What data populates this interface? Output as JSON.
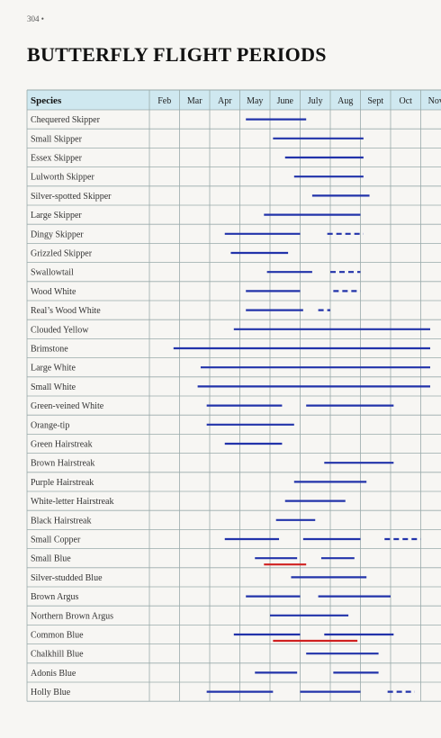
{
  "page_number": "304 •",
  "title": "BUTTERFLY FLIGHT PERIODS",
  "colors": {
    "line": "#2233aa",
    "highlight": "#d02020",
    "header_bg": "#cfe8f0",
    "grid": "#9aa"
  },
  "chart_data": {
    "type": "table",
    "species_header": "Species",
    "months": [
      "Feb",
      "Mar",
      "Apr",
      "May",
      "June",
      "July",
      "Aug",
      "Sept",
      "Oct",
      "Nov"
    ],
    "rows": [
      {
        "species": "Chequered Skipper",
        "bars": [
          {
            "start": 3.2,
            "end": 5.2,
            "style": "solid",
            "color": "blue"
          }
        ]
      },
      {
        "species": "Small Skipper",
        "bars": [
          {
            "start": 4.1,
            "end": 7.1,
            "style": "solid",
            "color": "blue"
          }
        ]
      },
      {
        "species": "Essex Skipper",
        "bars": [
          {
            "start": 4.5,
            "end": 7.1,
            "style": "solid",
            "color": "blue"
          }
        ]
      },
      {
        "species": "Lulworth Skipper",
        "bars": [
          {
            "start": 4.8,
            "end": 7.1,
            "style": "solid",
            "color": "blue"
          }
        ]
      },
      {
        "species": "Silver-spotted Skipper",
        "bars": [
          {
            "start": 5.4,
            "end": 7.3,
            "style": "solid",
            "color": "blue"
          }
        ]
      },
      {
        "species": "Large Skipper",
        "bars": [
          {
            "start": 3.8,
            "end": 7.0,
            "style": "solid",
            "color": "blue"
          }
        ]
      },
      {
        "species": "Dingy Skipper",
        "bars": [
          {
            "start": 2.5,
            "end": 5.0,
            "style": "solid",
            "color": "blue"
          },
          {
            "start": 5.9,
            "end": 7.1,
            "style": "dashed",
            "color": "blue"
          }
        ]
      },
      {
        "species": "Grizzled Skipper",
        "bars": [
          {
            "start": 2.7,
            "end": 4.6,
            "style": "solid",
            "color": "blue"
          }
        ]
      },
      {
        "species": "Swallowtail",
        "bars": [
          {
            "start": 3.9,
            "end": 5.4,
            "style": "solid",
            "color": "blue"
          },
          {
            "start": 6.0,
            "end": 7.0,
            "style": "dashed",
            "color": "blue"
          }
        ]
      },
      {
        "species": "Wood White",
        "bars": [
          {
            "start": 3.2,
            "end": 5.0,
            "style": "solid",
            "color": "blue"
          },
          {
            "start": 6.1,
            "end": 7.0,
            "style": "dashed",
            "color": "blue"
          }
        ]
      },
      {
        "species": "Real’s Wood White",
        "bars": [
          {
            "start": 3.2,
            "end": 5.1,
            "style": "solid",
            "color": "blue"
          },
          {
            "start": 5.6,
            "end": 6.0,
            "style": "dashed",
            "color": "blue"
          }
        ]
      },
      {
        "species": "Clouded Yellow",
        "bars": [
          {
            "start": 2.8,
            "end": 9.7,
            "style": "solid",
            "color": "blue"
          }
        ]
      },
      {
        "species": "Brimstone",
        "bars": [
          {
            "start": 0.8,
            "end": 9.7,
            "style": "solid",
            "color": "blue"
          }
        ]
      },
      {
        "species": "Large White",
        "bars": [
          {
            "start": 1.7,
            "end": 9.9,
            "style": "solid",
            "color": "blue"
          }
        ]
      },
      {
        "species": "Small White",
        "bars": [
          {
            "start": 1.6,
            "end": 9.9,
            "style": "solid",
            "color": "blue"
          }
        ]
      },
      {
        "species": "Green-veined White",
        "bars": [
          {
            "start": 1.9,
            "end": 4.4,
            "style": "solid",
            "color": "blue"
          },
          {
            "start": 5.2,
            "end": 8.1,
            "style": "solid",
            "color": "blue"
          }
        ]
      },
      {
        "species": "Orange-tip",
        "bars": [
          {
            "start": 1.9,
            "end": 4.8,
            "style": "solid",
            "color": "blue"
          }
        ]
      },
      {
        "species": "Green Hairstreak",
        "bars": [
          {
            "start": 2.5,
            "end": 4.4,
            "style": "solid",
            "color": "blue"
          }
        ]
      },
      {
        "species": "Brown Hairstreak",
        "bars": [
          {
            "start": 5.8,
            "end": 8.1,
            "style": "solid",
            "color": "blue"
          }
        ]
      },
      {
        "species": "Purple Hairstreak",
        "bars": [
          {
            "start": 4.8,
            "end": 7.2,
            "style": "solid",
            "color": "blue"
          }
        ]
      },
      {
        "species": "White-letter Hairstreak",
        "bars": [
          {
            "start": 4.5,
            "end": 6.5,
            "style": "solid",
            "color": "blue"
          }
        ]
      },
      {
        "species": "Black Hairstreak",
        "bars": [
          {
            "start": 4.2,
            "end": 5.5,
            "style": "solid",
            "color": "blue"
          }
        ]
      },
      {
        "species": "Small Copper",
        "bars": [
          {
            "start": 2.5,
            "end": 4.3,
            "style": "solid",
            "color": "blue"
          },
          {
            "start": 5.1,
            "end": 7.0,
            "style": "solid",
            "color": "blue"
          },
          {
            "start": 7.8,
            "end": 9.0,
            "style": "dashed",
            "color": "blue"
          }
        ]
      },
      {
        "species": "Small Blue",
        "bars": [
          {
            "start": 3.5,
            "end": 4.9,
            "style": "solid",
            "color": "blue"
          },
          {
            "start": 3.8,
            "end": 5.2,
            "style": "solid",
            "color": "red"
          },
          {
            "start": 5.7,
            "end": 6.8,
            "style": "solid",
            "color": "blue"
          }
        ]
      },
      {
        "species": "Silver-studded Blue",
        "bars": [
          {
            "start": 4.7,
            "end": 7.2,
            "style": "solid",
            "color": "blue"
          }
        ]
      },
      {
        "species": "Brown Argus",
        "bars": [
          {
            "start": 3.2,
            "end": 5.0,
            "style": "solid",
            "color": "blue"
          },
          {
            "start": 5.6,
            "end": 8.0,
            "style": "solid",
            "color": "blue"
          }
        ]
      },
      {
        "species": "Northern Brown Argus",
        "bars": [
          {
            "start": 4.0,
            "end": 6.6,
            "style": "solid",
            "color": "blue"
          }
        ]
      },
      {
        "species": "Common Blue",
        "bars": [
          {
            "start": 2.8,
            "end": 5.0,
            "style": "solid",
            "color": "blue"
          },
          {
            "start": 5.8,
            "end": 8.1,
            "style": "solid",
            "color": "blue"
          },
          {
            "start": 4.1,
            "end": 6.9,
            "style": "solid",
            "color": "red"
          }
        ]
      },
      {
        "species": "Chalkhill Blue",
        "bars": [
          {
            "start": 5.2,
            "end": 7.6,
            "style": "solid",
            "color": "blue"
          }
        ]
      },
      {
        "species": "Adonis Blue",
        "bars": [
          {
            "start": 3.5,
            "end": 4.9,
            "style": "solid",
            "color": "blue"
          },
          {
            "start": 6.1,
            "end": 7.6,
            "style": "solid",
            "color": "blue"
          }
        ]
      },
      {
        "species": "Holly Blue",
        "bars": [
          {
            "start": 1.9,
            "end": 4.1,
            "style": "solid",
            "color": "blue"
          },
          {
            "start": 5.0,
            "end": 7.0,
            "style": "solid",
            "color": "blue"
          },
          {
            "start": 7.9,
            "end": 8.8,
            "style": "dashed",
            "color": "blue"
          }
        ]
      }
    ]
  }
}
